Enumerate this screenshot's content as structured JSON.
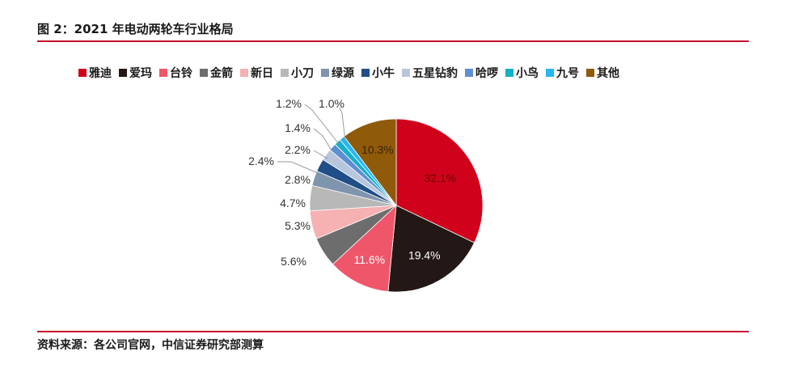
{
  "figure": {
    "title": "图 2：2021 年电动两轮车行业格局",
    "source": "资料来源：各公司官网，中信证券研究部测算"
  },
  "chart_data": {
    "type": "pie",
    "title": "",
    "categories": [
      "雅迪",
      "爱玛",
      "台铃",
      "金箭",
      "新日",
      "小刀",
      "绿源",
      "小牛",
      "五星钻豹",
      "哈啰",
      "小鸟",
      "九号",
      "其他"
    ],
    "values": [
      32.1,
      19.4,
      11.6,
      5.6,
      5.3,
      4.7,
      2.8,
      2.4,
      2.2,
      1.4,
      1.2,
      1.0,
      10.3
    ],
    "labels": [
      "32.1%",
      "19.4%",
      "11.6%",
      "5.6%",
      "5.3%",
      "4.7%",
      "2.8%",
      "2.4%",
      "2.2%",
      "1.4%",
      "1.2%",
      "1.0%",
      "10.3%"
    ],
    "colors": [
      "#d0021b",
      "#231815",
      "#f0566a",
      "#6d6d6d",
      "#f6b1b2",
      "#b8b8b8",
      "#7f95ad",
      "#1f4e89",
      "#b7c6dc",
      "#5e8fd0",
      "#12b0c9",
      "#27b7f0",
      "#8f5a0a"
    ],
    "legend_position": "top",
    "direction": "clockwise",
    "start": "top"
  }
}
